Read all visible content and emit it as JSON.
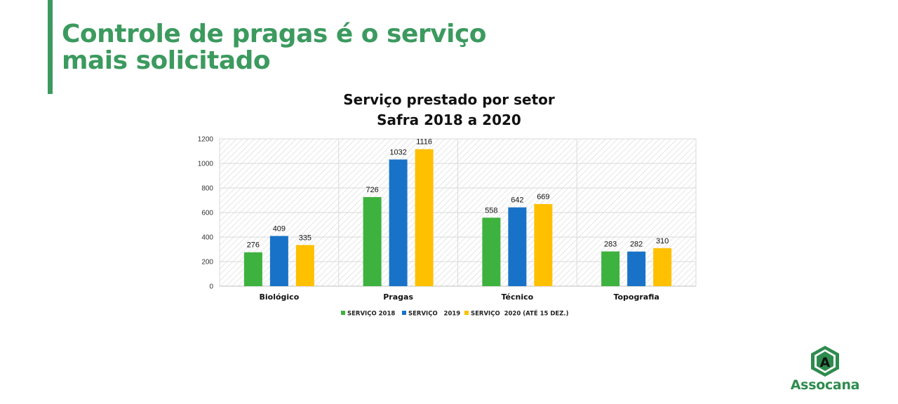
{
  "slide": {
    "title_line1": "Controle de pragas é o serviço",
    "title_line2": "mais solicitado",
    "accent_color": "#3c9a5f"
  },
  "logo": {
    "name": "Assocana",
    "mark": "A",
    "color": "#2e8b4e"
  },
  "chart_data": {
    "type": "bar",
    "title": "Serviço prestado por setor",
    "subtitle": "Safra 2018 a 2020",
    "categories": [
      "Biológico",
      "Pragas",
      "Técnico",
      "Topografia"
    ],
    "series": [
      {
        "name": "SERVIÇO 2018",
        "color": "#3eb23e",
        "values": [
          276,
          726,
          558,
          283
        ]
      },
      {
        "name": "SERVIÇO   2019",
        "color": "#1873c8",
        "values": [
          409,
          1032,
          642,
          282
        ]
      },
      {
        "name": "SERVIÇO  2020 (ATÉ 15 DEZ.)",
        "color": "#ffc000",
        "values": [
          335,
          1116,
          669,
          310
        ]
      }
    ],
    "ylim": [
      0,
      1200
    ],
    "yticks": [
      0,
      200,
      400,
      600,
      800,
      1000,
      1200
    ],
    "grid": true,
    "legend": "bottom"
  }
}
